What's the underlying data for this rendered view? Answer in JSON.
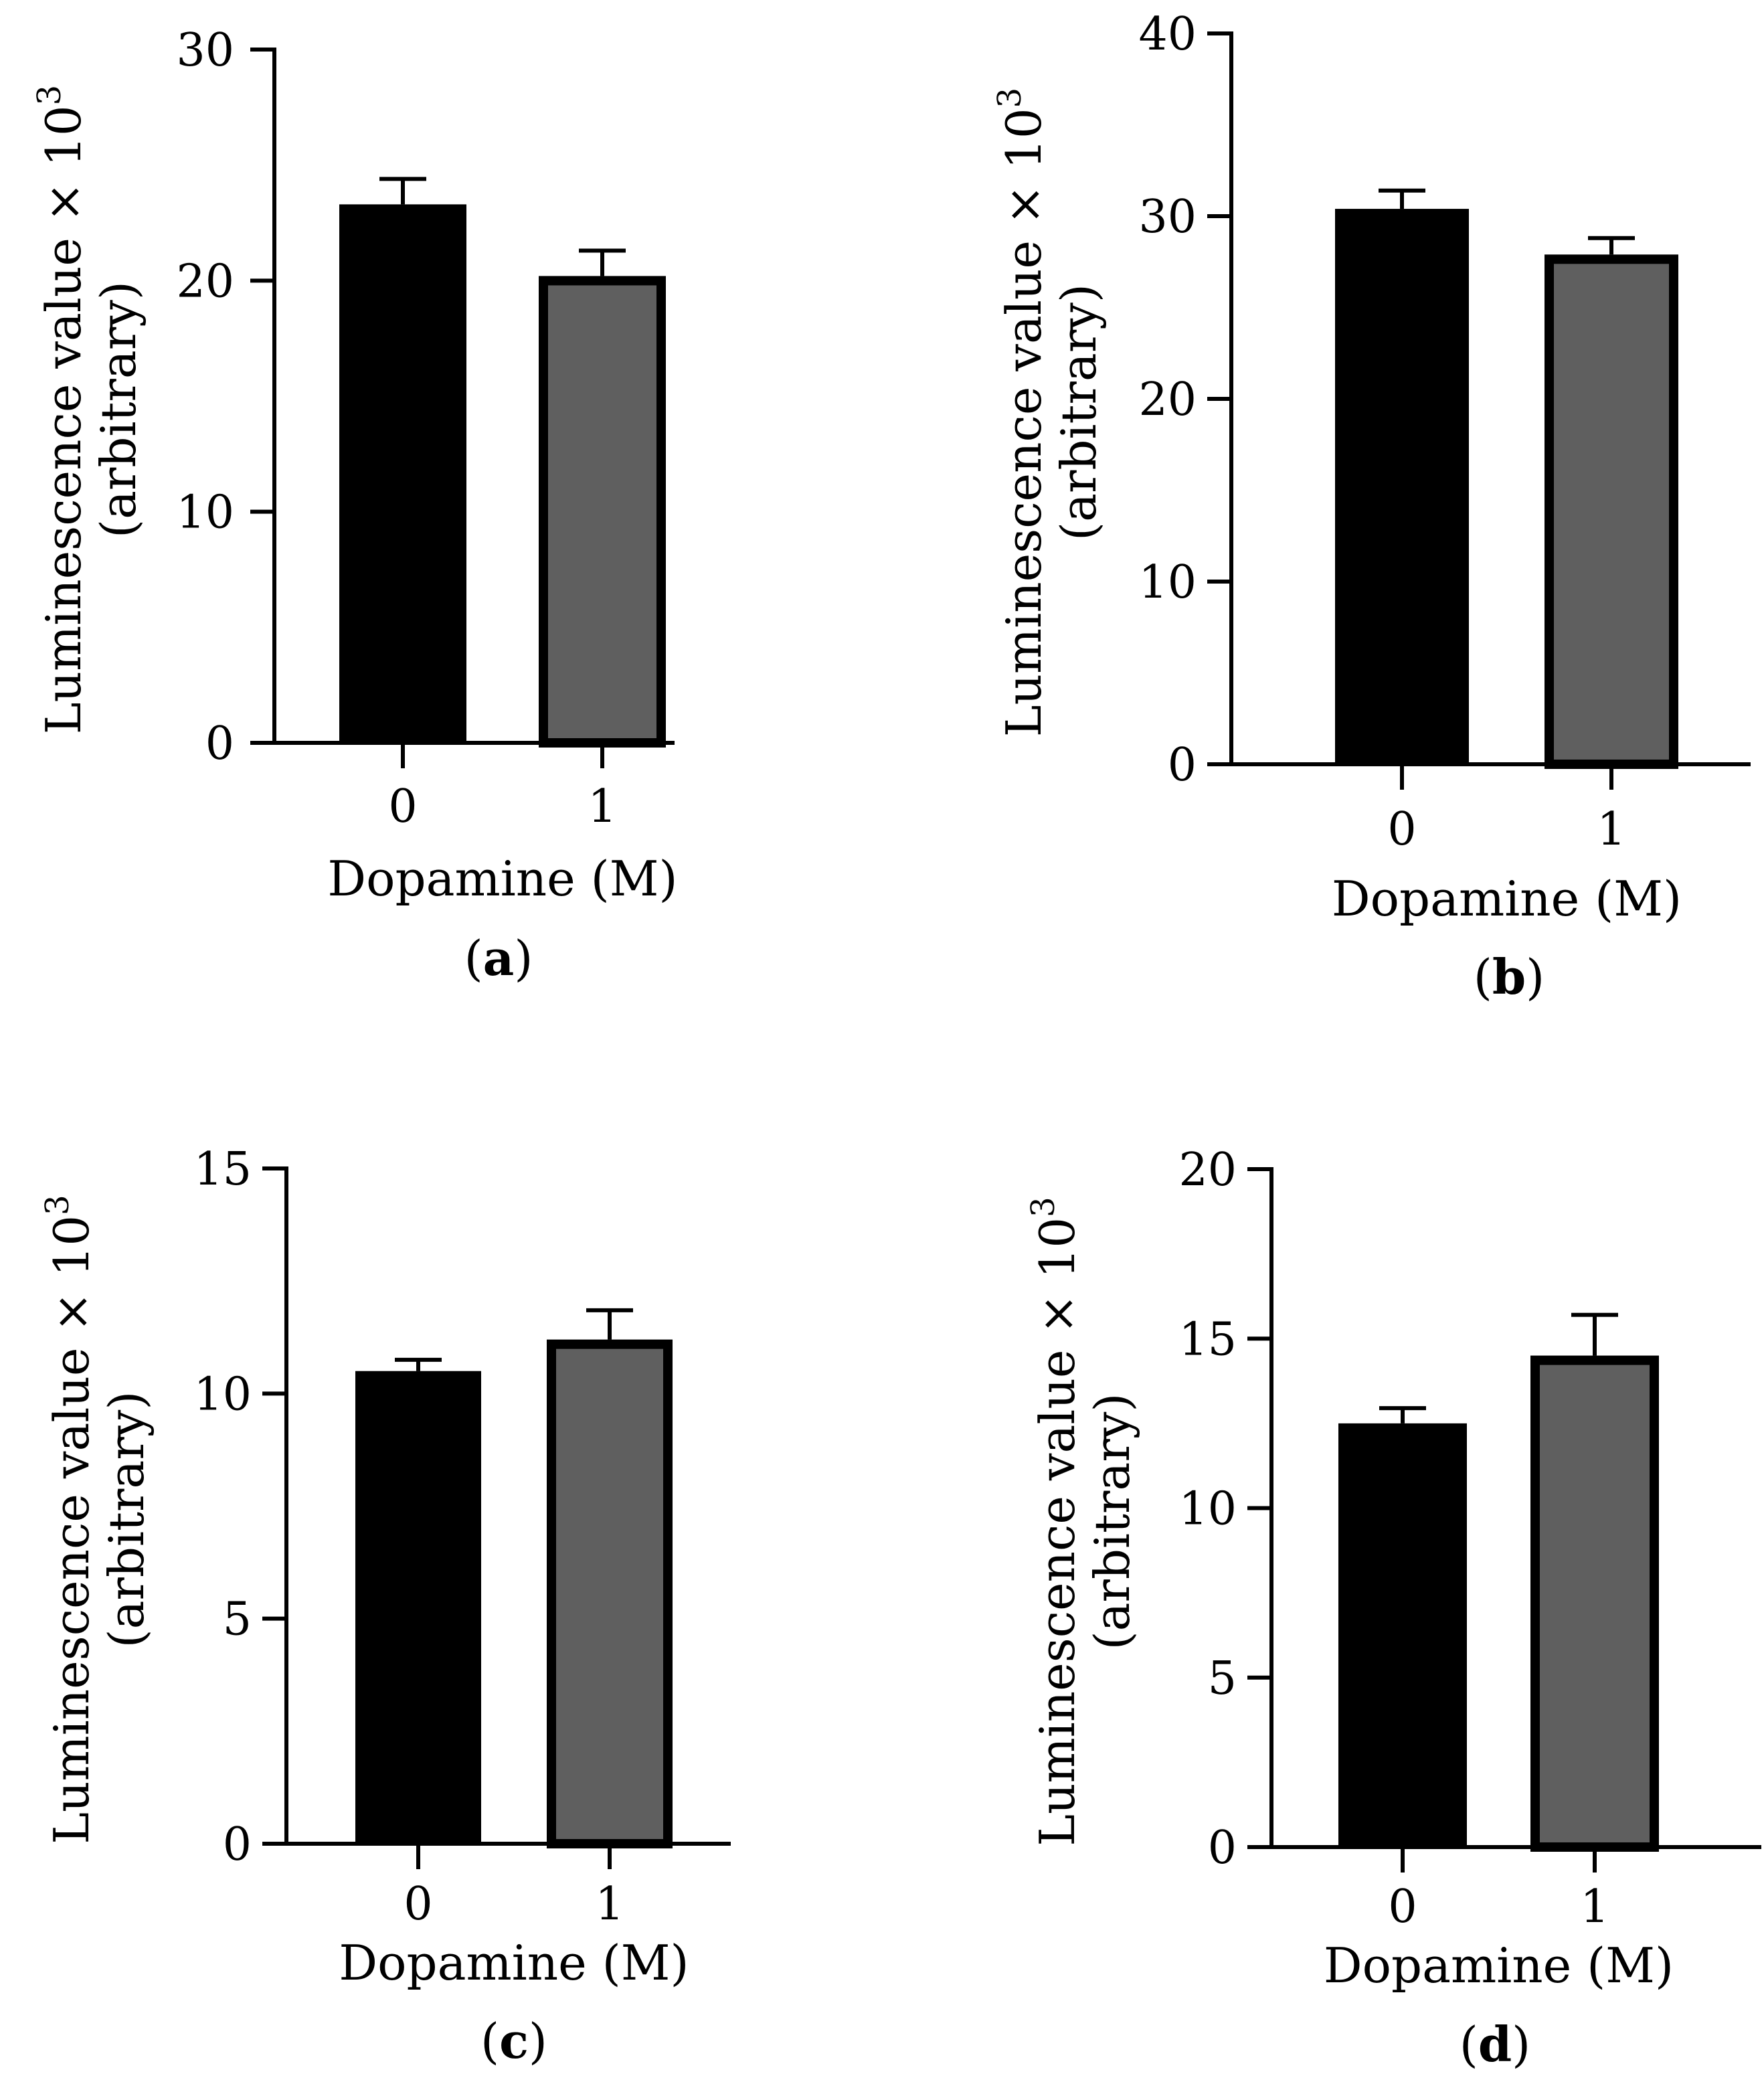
{
  "chart_data": [
    {
      "type": "bar",
      "panel_label": "a",
      "categories": [
        "0",
        "1"
      ],
      "values": [
        23.3,
        20.2
      ],
      "errors": [
        1.1,
        1.1
      ],
      "colors": [
        "#000000",
        "#5f5f5f"
      ],
      "ylim": [
        0,
        30
      ],
      "yticks": [
        0,
        10,
        20,
        30
      ],
      "xlabel": "Dopamine (M)",
      "ylabel": "Luminescence value × 10",
      "ylabel_exponent": "3",
      "ylabel_line2": "(arbitrary)"
    },
    {
      "type": "bar",
      "panel_label": "b",
      "categories": [
        "0",
        "1"
      ],
      "values": [
        30.4,
        27.9
      ],
      "errors": [
        1.0,
        0.9
      ],
      "colors": [
        "#000000",
        "#5f5f5f"
      ],
      "ylim": [
        0,
        40
      ],
      "yticks": [
        0,
        10,
        20,
        30,
        40
      ],
      "xlabel": "Dopamine (M)",
      "ylabel": "Luminescence value × 10",
      "ylabel_exponent": "3",
      "ylabel_line2": "(arbitrary)"
    },
    {
      "type": "bar",
      "panel_label": "c",
      "categories": [
        "0",
        "1"
      ],
      "values": [
        10.5,
        11.2
      ],
      "errors": [
        0.25,
        0.65
      ],
      "colors": [
        "#000000",
        "#5f5f5f"
      ],
      "ylim": [
        0,
        15
      ],
      "yticks": [
        0,
        5,
        10,
        15
      ],
      "xlabel": "Dopamine (M)",
      "ylabel": "Luminescence value × 10",
      "ylabel_exponent": "3",
      "ylabel_line2": "(arbitrary)"
    },
    {
      "type": "bar",
      "panel_label": "d",
      "categories": [
        "0",
        "1"
      ],
      "values": [
        12.5,
        14.5
      ],
      "errors": [
        0.45,
        1.2
      ],
      "colors": [
        "#000000",
        "#5f5f5f"
      ],
      "ylim": [
        0,
        20
      ],
      "yticks": [
        0,
        5,
        10,
        15,
        20
      ],
      "xlabel": "Dopamine (M)",
      "ylabel": "Luminescence value × 10",
      "ylabel_exponent": "3",
      "ylabel_line2": "(arbitrary)"
    }
  ]
}
